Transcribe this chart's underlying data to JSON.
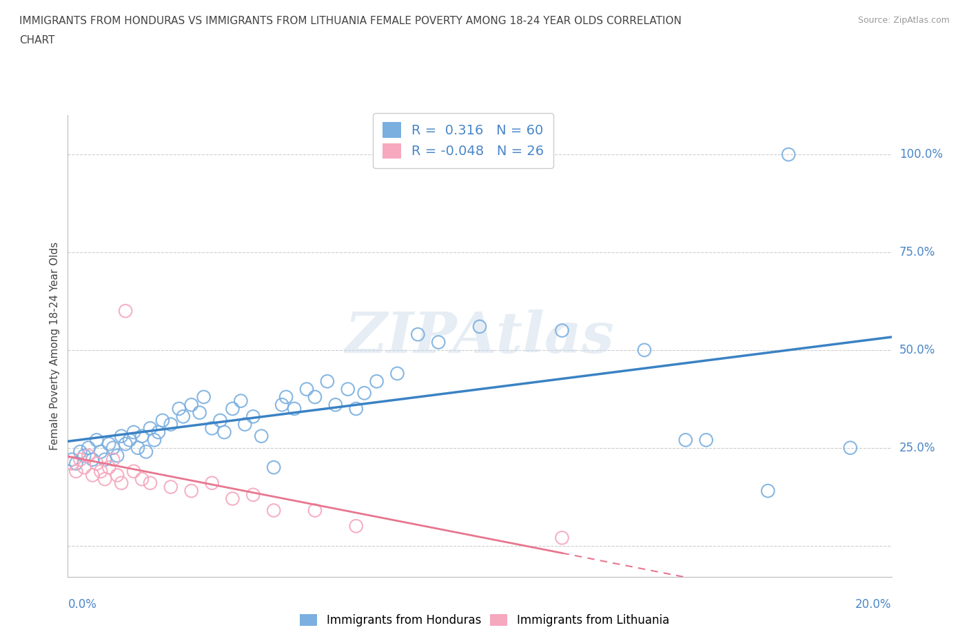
{
  "title_line1": "IMMIGRANTS FROM HONDURAS VS IMMIGRANTS FROM LITHUANIA FEMALE POVERTY AMONG 18-24 YEAR OLDS CORRELATION",
  "title_line2": "CHART",
  "source": "Source: ZipAtlas.com",
  "ylabel": "Female Poverty Among 18-24 Year Olds",
  "honduras_color": "#7aafe0",
  "lithuania_color": "#f5a8be",
  "honduras_line_color": "#3a82c4",
  "lithuania_line_color": "#e8758e",
  "honduras_R": 0.316,
  "honduras_N": 60,
  "lithuania_R": -0.048,
  "lithuania_N": 26,
  "watermark": "ZIPAtlas",
  "x_min": 0.0,
  "x_max": 0.2,
  "y_min": -0.08,
  "y_max": 1.1,
  "yticks": [
    0.0,
    0.25,
    0.5,
    0.75,
    1.0
  ],
  "ytick_labels": [
    "",
    "25.0%",
    "50.0%",
    "75.0%",
    "100.0%"
  ],
  "honduras_scatter": [
    [
      0.001,
      0.22
    ],
    [
      0.002,
      0.21
    ],
    [
      0.003,
      0.24
    ],
    [
      0.004,
      0.23
    ],
    [
      0.005,
      0.25
    ],
    [
      0.006,
      0.22
    ],
    [
      0.007,
      0.27
    ],
    [
      0.008,
      0.24
    ],
    [
      0.009,
      0.22
    ],
    [
      0.01,
      0.26
    ],
    [
      0.011,
      0.25
    ],
    [
      0.012,
      0.23
    ],
    [
      0.013,
      0.28
    ],
    [
      0.014,
      0.26
    ],
    [
      0.015,
      0.27
    ],
    [
      0.016,
      0.29
    ],
    [
      0.017,
      0.25
    ],
    [
      0.018,
      0.28
    ],
    [
      0.019,
      0.24
    ],
    [
      0.02,
      0.3
    ],
    [
      0.021,
      0.27
    ],
    [
      0.022,
      0.29
    ],
    [
      0.023,
      0.32
    ],
    [
      0.025,
      0.31
    ],
    [
      0.027,
      0.35
    ],
    [
      0.028,
      0.33
    ],
    [
      0.03,
      0.36
    ],
    [
      0.032,
      0.34
    ],
    [
      0.033,
      0.38
    ],
    [
      0.035,
      0.3
    ],
    [
      0.037,
      0.32
    ],
    [
      0.038,
      0.29
    ],
    [
      0.04,
      0.35
    ],
    [
      0.042,
      0.37
    ],
    [
      0.043,
      0.31
    ],
    [
      0.045,
      0.33
    ],
    [
      0.047,
      0.28
    ],
    [
      0.05,
      0.2
    ],
    [
      0.052,
      0.36
    ],
    [
      0.053,
      0.38
    ],
    [
      0.055,
      0.35
    ],
    [
      0.058,
      0.4
    ],
    [
      0.06,
      0.38
    ],
    [
      0.063,
      0.42
    ],
    [
      0.065,
      0.36
    ],
    [
      0.068,
      0.4
    ],
    [
      0.07,
      0.35
    ],
    [
      0.072,
      0.39
    ],
    [
      0.075,
      0.42
    ],
    [
      0.08,
      0.44
    ],
    [
      0.085,
      0.54
    ],
    [
      0.09,
      0.52
    ],
    [
      0.1,
      0.56
    ],
    [
      0.12,
      0.55
    ],
    [
      0.14,
      0.5
    ],
    [
      0.15,
      0.27
    ],
    [
      0.155,
      0.27
    ],
    [
      0.17,
      0.14
    ],
    [
      0.175,
      1.0
    ],
    [
      0.19,
      0.25
    ]
  ],
  "lithuania_scatter": [
    [
      0.001,
      0.21
    ],
    [
      0.002,
      0.19
    ],
    [
      0.003,
      0.22
    ],
    [
      0.004,
      0.2
    ],
    [
      0.005,
      0.23
    ],
    [
      0.006,
      0.18
    ],
    [
      0.007,
      0.21
    ],
    [
      0.008,
      0.19
    ],
    [
      0.009,
      0.17
    ],
    [
      0.01,
      0.2
    ],
    [
      0.011,
      0.22
    ],
    [
      0.012,
      0.18
    ],
    [
      0.013,
      0.16
    ],
    [
      0.014,
      0.6
    ],
    [
      0.016,
      0.19
    ],
    [
      0.018,
      0.17
    ],
    [
      0.02,
      0.16
    ],
    [
      0.025,
      0.15
    ],
    [
      0.03,
      0.14
    ],
    [
      0.035,
      0.16
    ],
    [
      0.04,
      0.12
    ],
    [
      0.045,
      0.13
    ],
    [
      0.05,
      0.09
    ],
    [
      0.06,
      0.09
    ],
    [
      0.07,
      0.05
    ],
    [
      0.12,
      0.02
    ]
  ]
}
